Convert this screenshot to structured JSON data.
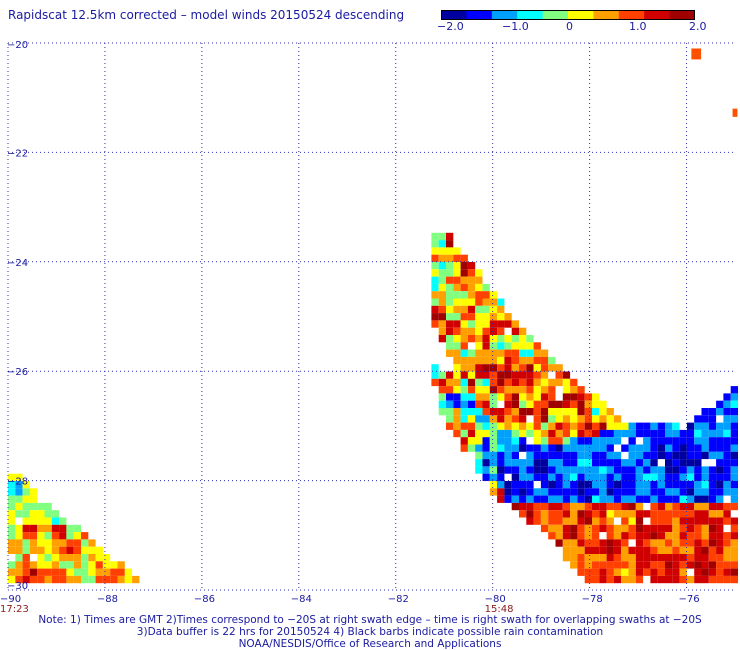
{
  "title": "Rapidscat 12.5km corrected – model winds 20150524 descending",
  "colorbar": {
    "ticks": [
      "−2.0",
      "−1.0",
      "0",
      "1.0",
      "2.0"
    ],
    "colors": [
      "#0000a0",
      "#0000ff",
      "#00a0ff",
      "#00ffff",
      "#80ff80",
      "#ffff00",
      "#ffa000",
      "#ff4000",
      "#d00000",
      "#a00000"
    ]
  },
  "map": {
    "lat_labels": [
      "−20",
      "−22",
      "−24",
      "−26",
      "−28",
      "−30"
    ],
    "lon_labels": [
      "−90",
      "−88",
      "−86",
      "−84",
      "−82",
      "−80",
      "−78",
      "−76"
    ],
    "lat_range": [
      -30,
      -20
    ],
    "lon_range": [
      -90,
      -75
    ],
    "time_labels": [
      {
        "lon": -90,
        "text": "17:23"
      },
      {
        "lon": -80,
        "text": "15:48"
      }
    ],
    "grid_color": "#3030b0",
    "swaths": [
      {
        "name": "west",
        "polygon": [
          [
            -90,
            -27.9
          ],
          [
            -89.7,
            -27.9
          ],
          [
            -88.8,
            -28.7
          ],
          [
            -88.0,
            -29.3
          ],
          [
            -87.1,
            -29.9
          ],
          [
            -90,
            -29.9
          ]
        ]
      },
      {
        "name": "east-arm",
        "polygon": [
          [
            -81.3,
            -23.5
          ],
          [
            -80.9,
            -23.5
          ],
          [
            -80.2,
            -24.3
          ],
          [
            -79.6,
            -25.0
          ],
          [
            -78.7,
            -25.8
          ],
          [
            -77.7,
            -26.6
          ],
          [
            -77.2,
            -27.0
          ],
          [
            -79.0,
            -27.4
          ],
          [
            -80.0,
            -27.0
          ],
          [
            -80.6,
            -26.3
          ],
          [
            -81.3,
            -25.0
          ]
        ]
      },
      {
        "name": "east-inner",
        "polygon": [
          [
            -81.3,
            -25.9
          ],
          [
            -80.6,
            -26.1
          ],
          [
            -80.2,
            -26.7
          ],
          [
            -79.7,
            -27.2
          ],
          [
            -79.8,
            -28.5
          ],
          [
            -80.3,
            -27.8
          ],
          [
            -81.0,
            -26.9
          ]
        ]
      },
      {
        "name": "east-main",
        "polygon": [
          [
            -80.0,
            -27.0
          ],
          [
            -79.0,
            -27.4
          ],
          [
            -77.2,
            -27.0
          ],
          [
            -76.0,
            -27.0
          ],
          [
            -75,
            -26.3
          ],
          [
            -75,
            -29.9
          ],
          [
            -78.0,
            -29.9
          ],
          [
            -78.9,
            -29.0
          ],
          [
            -79.8,
            -28.3
          ]
        ]
      },
      {
        "name": "spot1",
        "polygon": [
          [
            -75.9,
            -20.1
          ],
          [
            -75.7,
            -20.1
          ],
          [
            -75.7,
            -20.3
          ],
          [
            -75.9,
            -20.3
          ]
        ]
      },
      {
        "name": "spot2",
        "polygon": [
          [
            -75.05,
            -21.2
          ],
          [
            -74.95,
            -21.2
          ],
          [
            -74.95,
            -21.35
          ],
          [
            -75.05,
            -21.35
          ]
        ]
      }
    ],
    "pattern": [
      {
        "name": "west",
        "seed": 3,
        "bias": -0.3
      },
      {
        "name": "east-arm",
        "seed": 11,
        "bias": 0.4
      },
      {
        "name": "east-inner",
        "seed": 17,
        "bias": 0.0
      },
      {
        "name": "east-main",
        "seed": 29,
        "bias": 0.0
      }
    ]
  },
  "note": {
    "line1": "Note: 1) Times are GMT 2)Times correspond to −20S at right swath edge – time is right swath for overlapping swaths at −20S",
    "line2": "3)Data buffer is 22 hrs for 20150524 4) Black barbs indicate possible rain contamination",
    "line3": "NOAA/NESDIS/Office of Research and Applications"
  }
}
